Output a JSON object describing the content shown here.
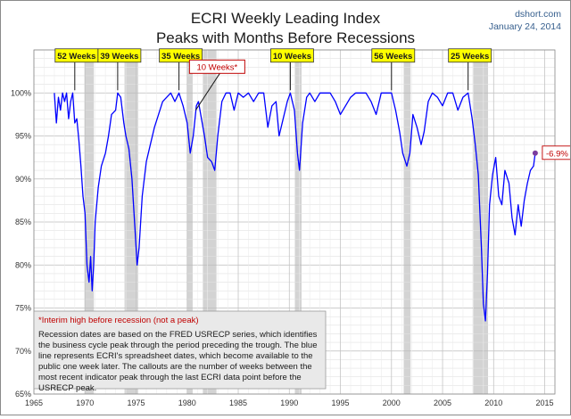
{
  "chart_data": {
    "type": "line",
    "title": "ECRI Weekly Leading Index",
    "subtitle": "Peaks with Months Before Recessions",
    "source": "dshort.com",
    "date": "January 24, 2014",
    "xlim": [
      1965,
      2016
    ],
    "ylim": [
      65,
      105
    ],
    "x_ticks": [
      "1965",
      "1970",
      "1975",
      "1980",
      "1985",
      "1990",
      "1995",
      "2000",
      "2005",
      "2010",
      "2015"
    ],
    "y_ticks": [
      "65%",
      "70%",
      "75%",
      "80%",
      "85%",
      "90%",
      "95%",
      "100%"
    ],
    "grid": true,
    "line_color": "#0000ff",
    "recession_color": "#d3d3d3",
    "recessions": [
      [
        1969.95,
        1970.87
      ],
      [
        1973.87,
        1975.2
      ],
      [
        1980.0,
        1980.54
      ],
      [
        1981.54,
        1982.87
      ],
      [
        1990.54,
        1991.2
      ],
      [
        2001.2,
        2001.87
      ],
      [
        2007.95,
        2009.45
      ]
    ],
    "series": [
      {
        "values": [
          [
            1967.0,
            100.0
          ],
          [
            1967.2,
            96.5
          ],
          [
            1967.4,
            99.5
          ],
          [
            1967.6,
            98.0
          ],
          [
            1967.8,
            100.0
          ],
          [
            1968.0,
            99.0
          ],
          [
            1968.2,
            100.0
          ],
          [
            1968.4,
            97.0
          ],
          [
            1968.6,
            99.0
          ],
          [
            1968.8,
            100.0
          ],
          [
            1969.0,
            96.5
          ],
          [
            1969.2,
            97.0
          ],
          [
            1969.4,
            94.5
          ],
          [
            1969.6,
            91.5
          ],
          [
            1969.8,
            88.0
          ],
          [
            1970.0,
            86.0
          ],
          [
            1970.2,
            80.0
          ],
          [
            1970.4,
            78.0
          ],
          [
            1970.55,
            81.0
          ],
          [
            1970.7,
            77.0
          ],
          [
            1970.85,
            80.0
          ],
          [
            1971.0,
            85.0
          ],
          [
            1971.3,
            89.0
          ],
          [
            1971.6,
            91.5
          ],
          [
            1972.0,
            93.0
          ],
          [
            1972.3,
            95.0
          ],
          [
            1972.6,
            97.5
          ],
          [
            1973.0,
            98.0
          ],
          [
            1973.2,
            100.0
          ],
          [
            1973.5,
            99.5
          ],
          [
            1973.8,
            96.5
          ],
          [
            1974.0,
            95.0
          ],
          [
            1974.3,
            93.5
          ],
          [
            1974.6,
            90.0
          ],
          [
            1974.9,
            84.0
          ],
          [
            1975.1,
            80.0
          ],
          [
            1975.3,
            82.0
          ],
          [
            1975.6,
            88.0
          ],
          [
            1976.0,
            92.0
          ],
          [
            1976.4,
            94.0
          ],
          [
            1976.8,
            96.0
          ],
          [
            1977.2,
            97.5
          ],
          [
            1977.6,
            99.0
          ],
          [
            1978.0,
            99.5
          ],
          [
            1978.4,
            100.0
          ],
          [
            1978.8,
            99.0
          ],
          [
            1979.2,
            100.0
          ],
          [
            1979.6,
            98.5
          ],
          [
            1980.0,
            96.5
          ],
          [
            1980.3,
            93.0
          ],
          [
            1980.6,
            95.0
          ],
          [
            1980.9,
            98.5
          ],
          [
            1981.1,
            99.0
          ],
          [
            1981.4,
            97.0
          ],
          [
            1981.7,
            95.0
          ],
          [
            1982.0,
            92.5
          ],
          [
            1982.4,
            92.0
          ],
          [
            1982.7,
            91.0
          ],
          [
            1983.0,
            95.0
          ],
          [
            1983.4,
            99.0
          ],
          [
            1983.8,
            100.0
          ],
          [
            1984.2,
            100.0
          ],
          [
            1984.6,
            98.0
          ],
          [
            1985.0,
            100.0
          ],
          [
            1985.5,
            99.5
          ],
          [
            1986.0,
            100.0
          ],
          [
            1986.5,
            99.0
          ],
          [
            1987.0,
            100.0
          ],
          [
            1987.5,
            100.0
          ],
          [
            1987.9,
            96.0
          ],
          [
            1988.3,
            98.5
          ],
          [
            1988.7,
            99.0
          ],
          [
            1989.0,
            95.0
          ],
          [
            1989.4,
            97.0
          ],
          [
            1989.8,
            99.0
          ],
          [
            1990.1,
            100.0
          ],
          [
            1990.5,
            98.0
          ],
          [
            1990.8,
            93.0
          ],
          [
            1991.0,
            91.0
          ],
          [
            1991.3,
            96.5
          ],
          [
            1991.7,
            99.5
          ],
          [
            1992.0,
            100.0
          ],
          [
            1992.5,
            99.0
          ],
          [
            1993.0,
            100.0
          ],
          [
            1993.5,
            100.0
          ],
          [
            1994.0,
            100.0
          ],
          [
            1994.5,
            99.0
          ],
          [
            1995.0,
            97.5
          ],
          [
            1995.5,
            98.5
          ],
          [
            1996.0,
            99.5
          ],
          [
            1996.5,
            100.0
          ],
          [
            1997.0,
            100.0
          ],
          [
            1997.5,
            100.0
          ],
          [
            1998.0,
            99.0
          ],
          [
            1998.5,
            97.5
          ],
          [
            1999.0,
            100.0
          ],
          [
            1999.5,
            100.0
          ],
          [
            2000.0,
            100.0
          ],
          [
            2000.4,
            98.0
          ],
          [
            2000.8,
            95.5
          ],
          [
            2001.1,
            93.0
          ],
          [
            2001.5,
            91.5
          ],
          [
            2001.8,
            93.0
          ],
          [
            2002.1,
            97.5
          ],
          [
            2002.5,
            96.0
          ],
          [
            2002.9,
            94.0
          ],
          [
            2003.2,
            95.5
          ],
          [
            2003.6,
            99.0
          ],
          [
            2004.0,
            100.0
          ],
          [
            2004.5,
            99.5
          ],
          [
            2005.0,
            98.5
          ],
          [
            2005.5,
            100.0
          ],
          [
            2006.0,
            100.0
          ],
          [
            2006.5,
            98.0
          ],
          [
            2007.0,
            99.5
          ],
          [
            2007.5,
            100.0
          ],
          [
            2007.9,
            97.0
          ],
          [
            2008.2,
            94.0
          ],
          [
            2008.5,
            90.5
          ],
          [
            2008.8,
            82.0
          ],
          [
            2009.0,
            75.5
          ],
          [
            2009.2,
            73.5
          ],
          [
            2009.4,
            79.0
          ],
          [
            2009.6,
            87.0
          ],
          [
            2009.9,
            90.5
          ],
          [
            2010.2,
            92.5
          ],
          [
            2010.5,
            88.0
          ],
          [
            2010.8,
            87.0
          ],
          [
            2011.1,
            91.0
          ],
          [
            2011.5,
            89.5
          ],
          [
            2011.8,
            85.5
          ],
          [
            2012.1,
            83.5
          ],
          [
            2012.4,
            87.0
          ],
          [
            2012.7,
            84.5
          ],
          [
            2013.0,
            87.5
          ],
          [
            2013.3,
            89.5
          ],
          [
            2013.6,
            91.0
          ],
          [
            2013.9,
            91.5
          ],
          [
            2014.07,
            93.0
          ]
        ]
      }
    ],
    "endpoint": {
      "x": 2014.07,
      "y": 93.0,
      "label": "-6.9%"
    },
    "callouts": [
      {
        "label": "52 Weeks",
        "peak_x": 1969.0
      },
      {
        "label": "39 Weeks",
        "peak_x": 1973.2
      },
      {
        "label": "35 Weeks",
        "peak_x": 1979.2
      },
      {
        "label": "10 Weeks*",
        "peak_x": 1981.1,
        "interim": true
      },
      {
        "label": "10 Weeks",
        "peak_x": 1990.1
      },
      {
        "label": "56 Weeks",
        "peak_x": 2000.0
      },
      {
        "label": "25 Weeks",
        "peak_x": 2007.5
      }
    ],
    "note": {
      "title": "*Interim high before recession (not a peak)",
      "body": "Recession dates are based on the FRED USRECP series, which identifies the business cycle peak through the period preceding the trough. The blue line represents ECRI's spreadsheet dates, which become available to the public one week later. The callouts are the number of weeks between the most recent indicator peak through the last ECRI data point before the USRECP peak."
    }
  }
}
